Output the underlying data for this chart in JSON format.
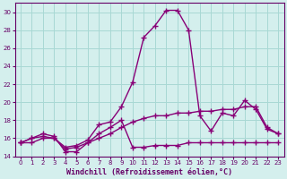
{
  "title": "Windchill (Refroidissement éolien,°C)",
  "bg_color": "#d4efed",
  "grid_color": "#a8d8d4",
  "line_color": "#880077",
  "xlim": [
    -0.5,
    23.5
  ],
  "ylim": [
    14,
    31
  ],
  "yticks": [
    14,
    16,
    18,
    20,
    22,
    24,
    26,
    28,
    30
  ],
  "xticks": [
    0,
    1,
    2,
    3,
    4,
    5,
    6,
    7,
    8,
    9,
    10,
    11,
    12,
    13,
    14,
    15,
    16,
    17,
    18,
    19,
    20,
    21,
    22,
    23
  ],
  "series1_x": [
    0,
    1,
    2,
    3,
    4,
    5,
    6,
    7,
    8,
    9,
    10,
    11,
    12,
    13,
    14,
    15,
    16,
    17,
    18,
    19,
    20,
    21,
    22,
    23
  ],
  "series1_y": [
    15.5,
    16.0,
    16.2,
    16.0,
    15.0,
    15.2,
    15.8,
    17.5,
    17.8,
    19.5,
    22.2,
    27.2,
    28.5,
    30.2,
    30.2,
    28.0,
    18.5,
    16.8,
    18.8,
    18.5,
    20.2,
    19.2,
    17.0,
    16.5
  ],
  "series2_x": [
    0,
    1,
    2,
    3,
    4,
    5,
    6,
    7,
    8,
    9,
    10,
    11,
    12,
    13,
    14,
    15,
    16,
    17,
    18,
    19,
    20,
    21,
    22,
    23
  ],
  "series2_y": [
    15.5,
    16.0,
    16.5,
    16.2,
    14.5,
    14.5,
    15.5,
    16.0,
    16.5,
    17.2,
    17.8,
    18.2,
    18.5,
    18.5,
    18.8,
    18.8,
    19.0,
    19.0,
    19.2,
    19.2,
    19.5,
    19.5,
    17.2,
    16.5
  ],
  "series3_x": [
    0,
    1,
    2,
    3,
    4,
    5,
    6,
    7,
    8,
    9,
    10,
    11,
    12,
    13,
    14,
    15,
    16,
    17,
    18,
    19,
    20,
    21,
    22,
    23
  ],
  "series3_y": [
    15.5,
    15.5,
    16.0,
    16.0,
    14.8,
    15.0,
    15.5,
    16.5,
    17.2,
    18.0,
    15.0,
    15.0,
    15.2,
    15.2,
    15.2,
    15.5,
    15.5,
    15.5,
    15.5,
    15.5,
    15.5,
    15.5,
    15.5,
    15.5
  ],
  "marker": "+",
  "markersize": 4,
  "linewidth": 1.0,
  "tick_fontsize": 5,
  "label_fontsize": 6,
  "tick_color": "#660066",
  "spine_color": "#660066"
}
